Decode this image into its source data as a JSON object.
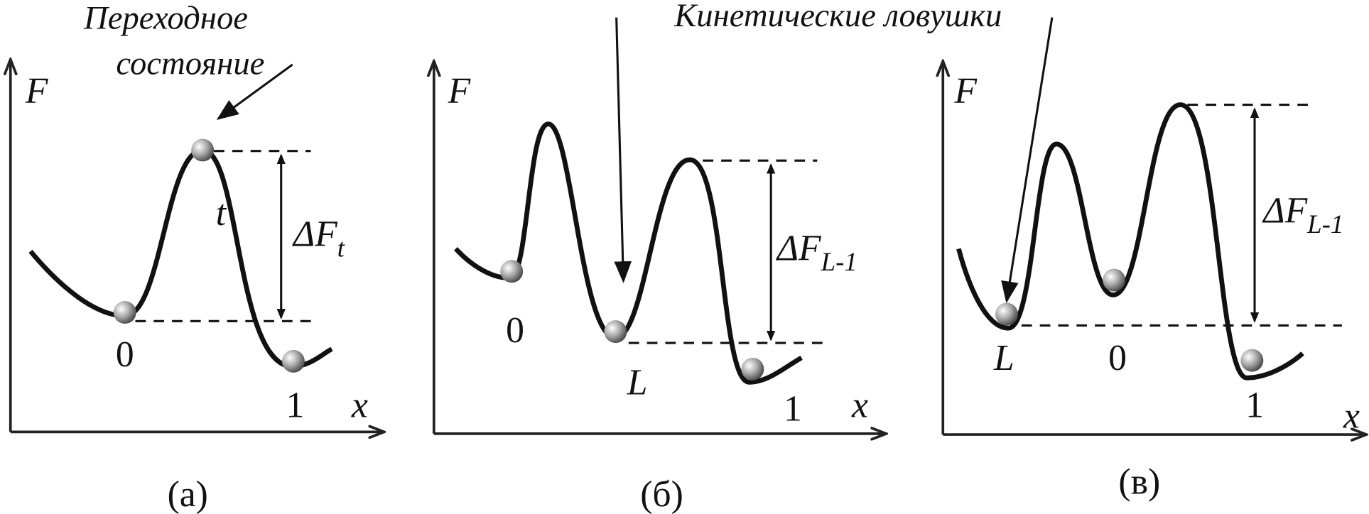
{
  "annotations": {
    "transition_state": {
      "line1": "Переходное",
      "line2": "состояние"
    },
    "kinetic_traps": "Кинетические ловушки"
  },
  "panels": [
    {
      "label": "(а)",
      "y_axis": "F",
      "x_axis": "x",
      "points": [
        "0",
        "t",
        "1"
      ],
      "delta": {
        "symbol": "ΔF",
        "subscript": "t"
      }
    },
    {
      "label": "(б)",
      "y_axis": "F",
      "x_axis": "x",
      "points": [
        "0",
        "L",
        "1"
      ],
      "delta": {
        "symbol": "ΔF",
        "subscript": "L-1"
      }
    },
    {
      "label": "(в)",
      "y_axis": "F",
      "x_axis": "x",
      "points": [
        "L",
        "0",
        "1"
      ],
      "delta": {
        "symbol": "ΔF",
        "subscript": "L-1"
      }
    }
  ]
}
